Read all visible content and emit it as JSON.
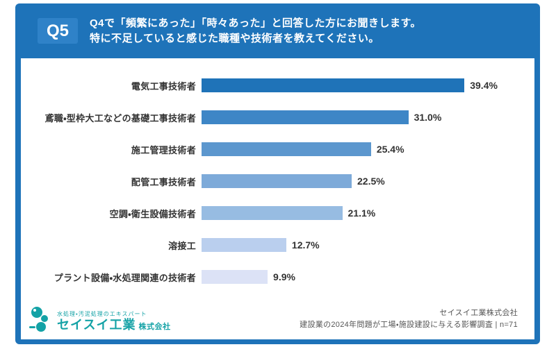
{
  "header": {
    "badge": "Q5",
    "question_line1": "Q4で「頻繁にあった」「時々あった」と回答した方にお聞きします。",
    "question_line2": "特に不足していると感じた職種や技術者を教えてください。"
  },
  "chart_data": {
    "type": "bar",
    "orientation": "horizontal",
    "title": "",
    "categories": [
      "電気工事技術者",
      "鳶職・型枠大工などの基礎工事技術者",
      "施工管理技術者",
      "配管工事技術者",
      "空調・衛生設備技術者",
      "溶接工",
      "プラント設備・水処理関連の技術者"
    ],
    "values": [
      39.4,
      31.0,
      25.4,
      22.5,
      21.1,
      12.7,
      9.9
    ],
    "value_labels": [
      "39.4%",
      "31.0%",
      "25.4%",
      "22.5%",
      "21.1%",
      "12.7%",
      "9.9%"
    ],
    "bar_colors": [
      "#1F73B8",
      "#3E86C6",
      "#5C97CE",
      "#7DAAD9",
      "#97BCE2",
      "#BACFEE",
      "#DCE2F6"
    ],
    "xlim": [
      0,
      40
    ],
    "grid": false,
    "legend": false,
    "value_label_position": "right-of-bar"
  },
  "footer": {
    "logo": {
      "tagline": "水処理・汚泥処理のエキスパート",
      "company": "セイスイ工業",
      "suffix": "株式会社",
      "brand_color": "#14A2A6"
    },
    "source_line1": "セイスイ工業株式会社",
    "source_line2": "建設業の2024年問題が工場・施設建設に与える影響調査 | n=71"
  },
  "colors": {
    "frame_blue": "#1E73B9",
    "badge_blue": "#2F82C8",
    "text_dark": "#333333",
    "source_gray": "#555555"
  }
}
